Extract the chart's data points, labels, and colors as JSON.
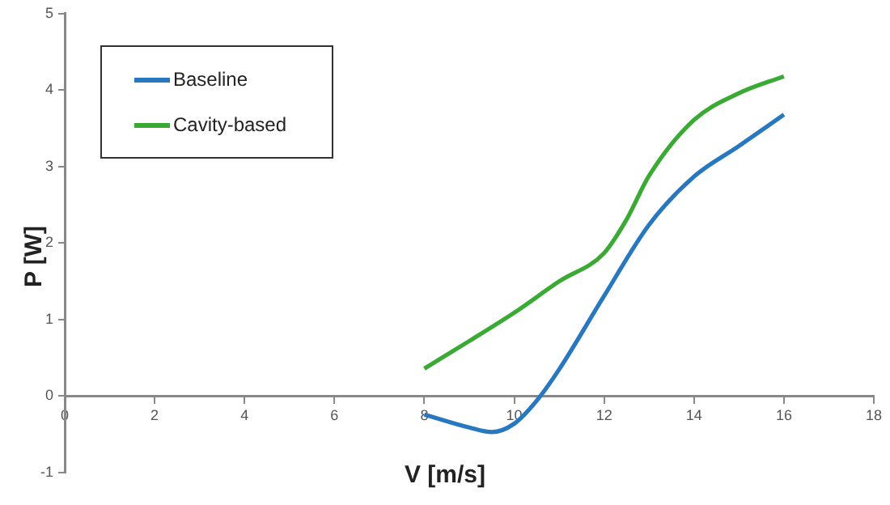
{
  "chart_data": {
    "type": "line",
    "xlabel": "V [m/s]",
    "ylabel": "P [W]",
    "xlim": [
      0,
      18
    ],
    "xticks": [
      0,
      2,
      4,
      6,
      8,
      10,
      12,
      14,
      16,
      18
    ],
    "ylim": [
      -1,
      5
    ],
    "yticks": [
      -1,
      0,
      1,
      2,
      3,
      4,
      5
    ],
    "grid": false,
    "legend": "top left",
    "marker": "none",
    "line_style": "solid",
    "series": [
      {
        "name": "Baseline",
        "color": "#2878c0",
        "x": [
          8,
          9,
          9.5,
          10,
          10.5,
          11,
          12,
          13,
          14,
          15,
          16
        ],
        "values": [
          -0.24,
          -0.41,
          -0.47,
          -0.36,
          -0.06,
          0.35,
          1.31,
          2.24,
          2.87,
          3.27,
          3.68
        ]
      },
      {
        "name": "Cavity-based",
        "color": "#3aaa35",
        "x": [
          8,
          9,
          10,
          11,
          12,
          12.5,
          13,
          14,
          15,
          16
        ],
        "values": [
          0.36,
          0.72,
          1.09,
          1.5,
          1.87,
          2.31,
          2.88,
          3.61,
          3.96,
          4.18
        ]
      }
    ]
  }
}
